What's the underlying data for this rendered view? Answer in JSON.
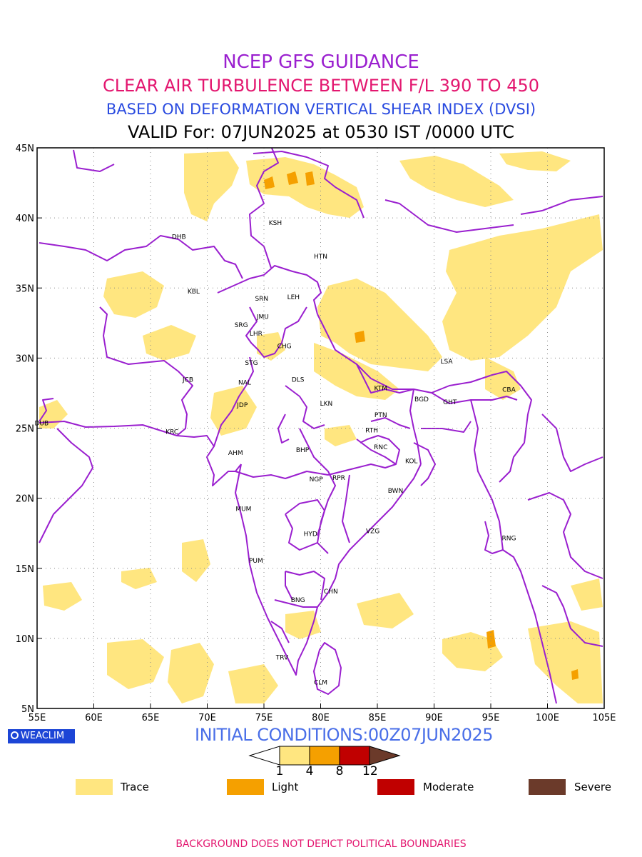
{
  "header": {
    "line1": "NCEP GFS GUIDANCE",
    "line2": "CLEAR AIR TURBULENCE BETWEEN F/L 390 TO 450",
    "line3": "BASED ON DEFORMATION VERTICAL SHEAR INDEX (DVSI)",
    "line4": "VALID For: 07JUN2025 at 0530 IST /0000 UTC"
  },
  "map": {
    "lon_range": [
      55,
      105
    ],
    "lat_range": [
      5,
      45
    ],
    "lon_ticks": [
      "55E",
      "60E",
      "65E",
      "70E",
      "75E",
      "80E",
      "85E",
      "90E",
      "95E",
      "100E",
      "105E"
    ],
    "lat_ticks": [
      "45N",
      "40N",
      "35N",
      "30N",
      "25N",
      "20N",
      "15N",
      "10N",
      "5N"
    ],
    "grid": "dotted",
    "boundary_color": "#9a1fcf",
    "stations": [
      {
        "code": "KSH",
        "lon": 76.0,
        "lat": 39.5
      },
      {
        "code": "DHB",
        "lon": 67.5,
        "lat": 38.5
      },
      {
        "code": "HTN",
        "lon": 80.0,
        "lat": 37.1
      },
      {
        "code": "KBL",
        "lon": 68.8,
        "lat": 34.6
      },
      {
        "code": "SRN",
        "lon": 74.8,
        "lat": 34.1
      },
      {
        "code": "LEH",
        "lon": 77.6,
        "lat": 34.2
      },
      {
        "code": "JMU",
        "lon": 74.9,
        "lat": 32.8
      },
      {
        "code": "SRG",
        "lon": 73.0,
        "lat": 32.2
      },
      {
        "code": "LHR",
        "lon": 74.3,
        "lat": 31.6
      },
      {
        "code": "CHG",
        "lon": 76.8,
        "lat": 30.7
      },
      {
        "code": "STG",
        "lon": 73.9,
        "lat": 29.5
      },
      {
        "code": "LSA",
        "lon": 91.1,
        "lat": 29.6
      },
      {
        "code": "JCB",
        "lon": 68.3,
        "lat": 28.3
      },
      {
        "code": "NAL",
        "lon": 73.3,
        "lat": 28.1
      },
      {
        "code": "DLS",
        "lon": 78.0,
        "lat": 28.3
      },
      {
        "code": "KTM",
        "lon": 85.3,
        "lat": 27.7
      },
      {
        "code": "CBA",
        "lon": 96.6,
        "lat": 27.6
      },
      {
        "code": "BGD",
        "lon": 88.9,
        "lat": 26.9
      },
      {
        "code": "GHT",
        "lon": 91.4,
        "lat": 26.7
      },
      {
        "code": "LKN",
        "lon": 80.5,
        "lat": 26.6
      },
      {
        "code": "JDP",
        "lon": 73.1,
        "lat": 26.5
      },
      {
        "code": "PTN",
        "lon": 85.3,
        "lat": 25.8
      },
      {
        "code": "DUB",
        "lon": 55.4,
        "lat": 25.2
      },
      {
        "code": "RTH",
        "lon": 84.5,
        "lat": 24.7
      },
      {
        "code": "KRC",
        "lon": 66.9,
        "lat": 24.6
      },
      {
        "code": "BHP",
        "lon": 78.4,
        "lat": 23.3
      },
      {
        "code": "AHM",
        "lon": 72.5,
        "lat": 23.1
      },
      {
        "code": "RNC",
        "lon": 85.3,
        "lat": 23.5
      },
      {
        "code": "KOL",
        "lon": 88.0,
        "lat": 22.5
      },
      {
        "code": "NGP",
        "lon": 79.6,
        "lat": 21.2
      },
      {
        "code": "RPR",
        "lon": 81.6,
        "lat": 21.3
      },
      {
        "code": "BWN",
        "lon": 86.6,
        "lat": 20.4
      },
      {
        "code": "MUM",
        "lon": 73.2,
        "lat": 19.1
      },
      {
        "code": "HYD",
        "lon": 79.1,
        "lat": 17.3
      },
      {
        "code": "VZG",
        "lon": 84.6,
        "lat": 17.5
      },
      {
        "code": "RNG",
        "lon": 96.6,
        "lat": 17.0
      },
      {
        "code": "PUM",
        "lon": 74.3,
        "lat": 15.4
      },
      {
        "code": "CHN",
        "lon": 80.9,
        "lat": 13.2
      },
      {
        "code": "BNG",
        "lon": 78.0,
        "lat": 12.6
      },
      {
        "code": "TRV",
        "lon": 76.6,
        "lat": 8.5
      },
      {
        "code": "CLM",
        "lon": 80.0,
        "lat": 6.7
      }
    ]
  },
  "branding": {
    "logo_text": "WEACLIM"
  },
  "initial_conditions": "INITIAL CONDITIONS:00Z07JUN2025",
  "colorbar": {
    "labels": [
      "1",
      "4",
      "8",
      "12"
    ],
    "colors": [
      "#ffe680",
      "#f5a000",
      "#c00000",
      "#6b3a2a"
    ]
  },
  "legend": [
    {
      "label": "Trace",
      "color": "#ffe680"
    },
    {
      "label": "Light",
      "color": "#f5a000"
    },
    {
      "label": "Moderate",
      "color": "#c00000"
    },
    {
      "label": "Severe",
      "color": "#6b3a2a"
    }
  ],
  "footer": "BACKGROUND DOES NOT DEPICT POLITICAL BOUNDARIES"
}
